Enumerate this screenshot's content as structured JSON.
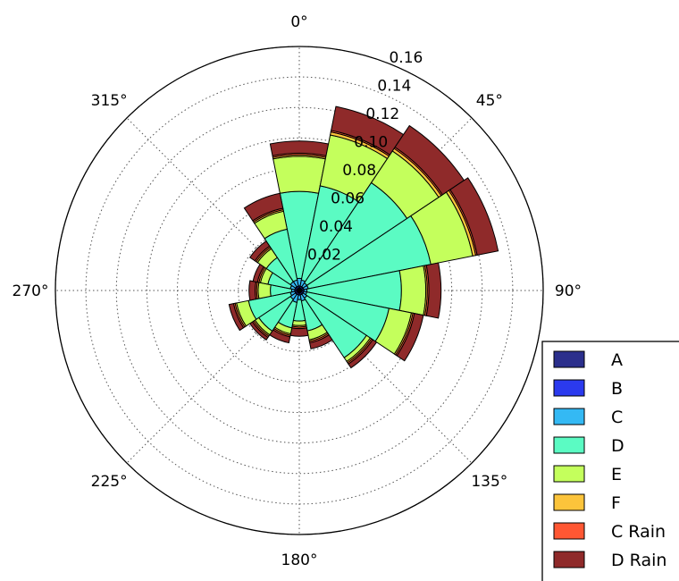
{
  "chart_data": {
    "type": "polar-stacked-bar",
    "title": "",
    "theta_direction": "clockwise",
    "theta_zero": "top",
    "theta_tick_labels": [
      "0°",
      "45°",
      "90°",
      "135°",
      "180°",
      "225°",
      "270°",
      "315°"
    ],
    "theta_ticks_deg": [
      0,
      45,
      90,
      135,
      180,
      225,
      270,
      315
    ],
    "r_tick_labels": [
      "0.02",
      "0.04",
      "0.06",
      "0.08",
      "0.10",
      "0.12",
      "0.14",
      "0.16"
    ],
    "r_ticks": [
      0.02,
      0.04,
      0.06,
      0.08,
      0.1,
      0.12,
      0.14,
      0.16
    ],
    "r_tick_label_angle_deg": 22.5,
    "rlim": [
      0,
      0.16
    ],
    "grid": true,
    "legend_position": "lower-right",
    "categories_deg": [
      0,
      22.5,
      45,
      67.5,
      90,
      112.5,
      135,
      157.5,
      180,
      202.5,
      225,
      247.5,
      270,
      292.5,
      315,
      337.5
    ],
    "series": [
      {
        "name": "A",
        "color": "#2b2f8c",
        "values": [
          0.001,
          0.001,
          0.001,
          0.001,
          0.001,
          0.001,
          0.001,
          0.001,
          0.001,
          0.001,
          0.001,
          0.001,
          0.001,
          0.001,
          0.001,
          0.001
        ]
      },
      {
        "name": "B",
        "color": "#2b3aee",
        "values": [
          0.002,
          0.002,
          0.002,
          0.002,
          0.002,
          0.002,
          0.002,
          0.002,
          0.002,
          0.002,
          0.002,
          0.002,
          0.002,
          0.002,
          0.002,
          0.002
        ]
      },
      {
        "name": "C",
        "color": "#34b9f4",
        "values": [
          0.005,
          0.004,
          0.003,
          0.003,
          0.002,
          0.002,
          0.003,
          0.004,
          0.003,
          0.005,
          0.004,
          0.003,
          0.002,
          0.003,
          0.004,
          0.004
        ]
      },
      {
        "name": "D",
        "color": "#5bfbc3",
        "values": [
          0.057,
          0.063,
          0.079,
          0.082,
          0.062,
          0.055,
          0.047,
          0.02,
          0.014,
          0.017,
          0.025,
          0.028,
          0.014,
          0.015,
          0.019,
          0.034
        ]
      },
      {
        "name": "E",
        "color": "#c4ff5c",
        "values": [
          0.023,
          0.034,
          0.025,
          0.028,
          0.016,
          0.015,
          0.003,
          0.006,
          0.003,
          0.004,
          0.003,
          0.008,
          0.008,
          0.005,
          0.007,
          0.012
        ]
      },
      {
        "name": "F",
        "color": "#fcc43b",
        "values": [
          0.001,
          0.002,
          0.002,
          0.002,
          0.001,
          0.001,
          0.001,
          0.001,
          0.001,
          0.001,
          0.001,
          0.001,
          0.001,
          0.001,
          0.001,
          0.001
        ]
      },
      {
        "name": "C Rain",
        "color": "#ff5733",
        "values": [
          0.001,
          0.001,
          0.001,
          0.001,
          0.001,
          0.001,
          0.001,
          0.001,
          0.001,
          0.001,
          0.001,
          0.001,
          0.001,
          0.001,
          0.001,
          0.001
        ]
      },
      {
        "name": "D Rain",
        "color": "#8f2a2a",
        "values": [
          0.008,
          0.016,
          0.017,
          0.014,
          0.008,
          0.006,
          0.003,
          0.004,
          0.005,
          0.004,
          0.002,
          0.003,
          0.004,
          0.003,
          0.004,
          0.01
        ]
      }
    ]
  }
}
